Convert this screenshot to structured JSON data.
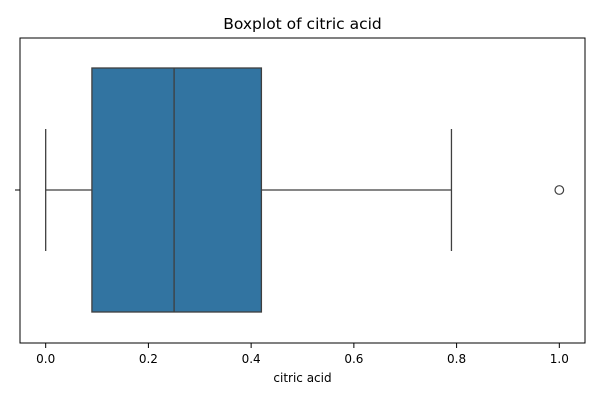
{
  "chart_data": {
    "type": "box",
    "title": "Boxplot of citric acid",
    "xlabel": "citric acid",
    "ylabel": "",
    "xlim": [
      -0.05,
      1.05
    ],
    "xticks": [
      0.0,
      0.2,
      0.4,
      0.6,
      0.8,
      1.0
    ],
    "xtick_labels": [
      "0.0",
      "0.2",
      "0.4",
      "0.6",
      "0.8",
      "1.0"
    ],
    "orientation": "horizontal",
    "grid": false,
    "box": {
      "whisker_low": 0.0,
      "q1": 0.09,
      "median": 0.25,
      "q3": 0.42,
      "whisker_high": 0.79,
      "outliers": [
        1.0
      ]
    },
    "colors": {
      "box_fill": "#3274a1",
      "line": "#3f3f3f",
      "outlier_edge": "#3f3f3f"
    }
  }
}
